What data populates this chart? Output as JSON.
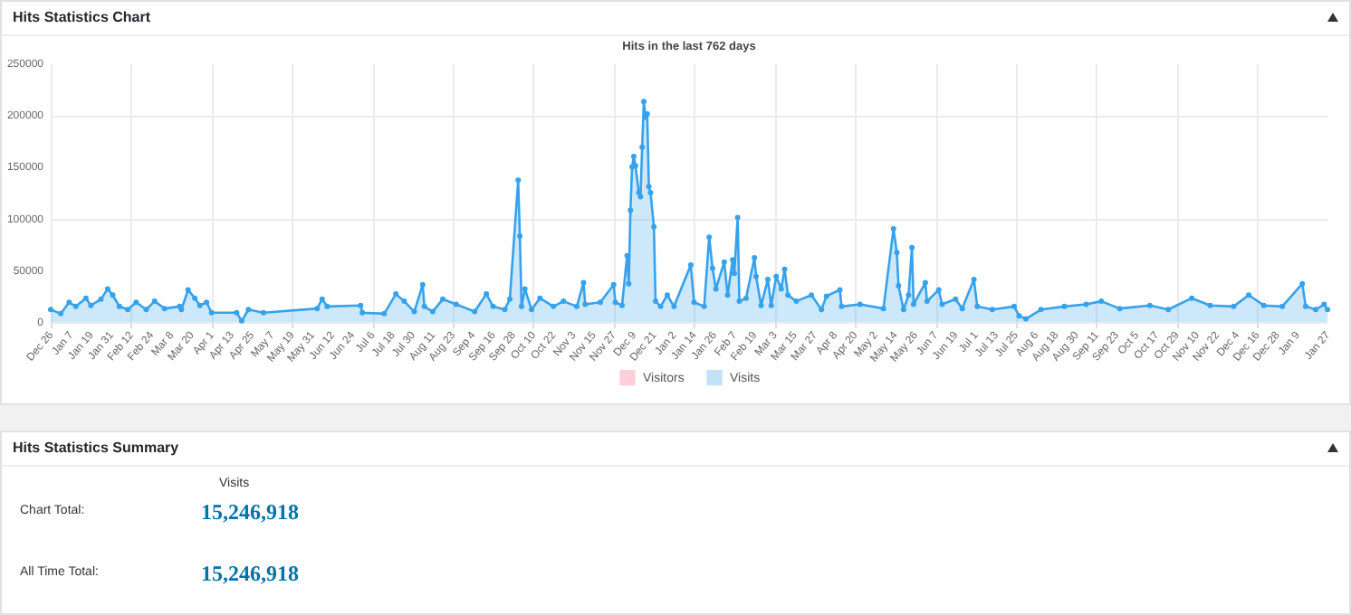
{
  "chart_data": [
    {
      "type": "area",
      "title": "Hits Statistics Chart",
      "subtitle": "Hits in the last 762 days",
      "marker": "circle",
      "grid": true,
      "legend": "bottom",
      "categories": [
        "Dec 26",
        null,
        null,
        null,
        null,
        null,
        null,
        null,
        null,
        null,
        null,
        null,
        "Jan 7",
        null,
        null,
        null,
        null,
        null,
        null,
        null,
        null,
        null,
        null,
        null,
        "Jan 19",
        null,
        null,
        null,
        null,
        null,
        null,
        null,
        null,
        null,
        null,
        null,
        "Jan 31",
        null,
        null,
        null,
        null,
        null,
        null,
        null,
        null,
        null,
        null,
        null,
        "Feb 12",
        null,
        null,
        null,
        null,
        null,
        null,
        null,
        null,
        null,
        null,
        null,
        "Feb 24",
        null,
        null,
        null,
        null,
        null,
        null,
        null,
        null,
        null,
        null,
        null,
        "Mar 8",
        null,
        null,
        null,
        null,
        null,
        null,
        null,
        null,
        null,
        null,
        null,
        "Mar 20",
        null,
        null,
        null,
        null,
        null,
        null,
        null,
        null,
        null,
        null,
        null,
        "Apr 1",
        null,
        null,
        null,
        null,
        null,
        null,
        null,
        null,
        null,
        null,
        null,
        "Apr 13",
        null,
        null,
        null,
        null,
        null,
        null,
        null,
        null,
        null,
        null,
        null,
        "Apr 25",
        null,
        null,
        null,
        null,
        null,
        null,
        null,
        null,
        null,
        null,
        null,
        "May 7",
        null,
        null,
        null,
        null,
        null,
        null,
        null,
        null,
        null,
        null,
        null,
        "May 19",
        null,
        null,
        null,
        null,
        null,
        null,
        null,
        null,
        null,
        null,
        null,
        "May 31",
        null,
        null,
        null,
        null,
        null,
        null,
        null,
        null,
        null,
        null,
        null,
        "Jun 12",
        null,
        null,
        null,
        null,
        null,
        null,
        null,
        null,
        null,
        null,
        null,
        "Jun 24",
        null,
        null,
        null,
        null,
        null,
        null,
        null,
        null,
        null,
        null,
        null,
        "Jul 6",
        null,
        null,
        null,
        null,
        null,
        null,
        null,
        null,
        null,
        null,
        null,
        "Jul 18",
        null,
        null,
        null,
        null,
        null,
        null,
        null,
        null,
        null,
        null,
        null,
        "Jul 30",
        null,
        null,
        null,
        null,
        null,
        null,
        null,
        null,
        null,
        null,
        null,
        "Aug 11",
        null,
        null,
        null,
        null,
        null,
        null,
        null,
        null,
        null,
        null,
        null,
        "Aug 23",
        null,
        null,
        null,
        null,
        null,
        null,
        null,
        null,
        null,
        null,
        null,
        "Sep 4",
        null,
        null,
        null,
        null,
        null,
        null,
        null,
        null,
        null,
        null,
        null,
        "Sep 16",
        null,
        null,
        null,
        null,
        null,
        null,
        null,
        null,
        null,
        null,
        null,
        "Sep 28",
        null,
        null,
        null,
        null,
        null,
        null,
        null,
        null,
        null,
        null,
        null,
        "Oct 10",
        null,
        null,
        null,
        null,
        null,
        null,
        null,
        null,
        null,
        null,
        null,
        "Oct 22",
        null,
        null,
        null,
        null,
        null,
        null,
        null,
        null,
        null,
        null,
        null,
        "Nov 3",
        null,
        null,
        null,
        null,
        null,
        null,
        null,
        null,
        null,
        null,
        null,
        "Nov 15",
        null,
        null,
        null,
        null,
        null,
        null,
        null,
        null,
        null,
        null,
        null,
        "Nov 27",
        null,
        null,
        null,
        null,
        null,
        null,
        null,
        null,
        null,
        null,
        null,
        "Dec 9",
        null,
        null,
        null,
        null,
        null,
        null,
        null,
        null,
        null,
        null,
        null,
        "Dec 21",
        null,
        null,
        null,
        null,
        null,
        null,
        null,
        null,
        null,
        null,
        null,
        "Jan 2",
        null,
        null,
        null,
        null,
        null,
        null,
        null,
        null,
        null,
        null,
        null,
        "Jan 14",
        null,
        null,
        null,
        null,
        null,
        null,
        null,
        null,
        null,
        null,
        null,
        "Jan 26",
        null,
        null,
        null,
        null,
        null,
        null,
        null,
        null,
        null,
        null,
        null,
        "Feb 7",
        null,
        null,
        null,
        null,
        null,
        null,
        null,
        null,
        null,
        null,
        null,
        "Feb 19",
        null,
        null,
        null,
        null,
        null,
        null,
        null,
        null,
        null,
        null,
        null,
        "Mar 3",
        null,
        null,
        null,
        null,
        null,
        null,
        null,
        null,
        null,
        null,
        null,
        "Mar 15",
        null,
        null,
        null,
        null,
        null,
        null,
        null,
        null,
        null,
        null,
        null,
        "Mar 27",
        null,
        null,
        null,
        null,
        null,
        null,
        null,
        null,
        null,
        null,
        null,
        "Apr 8",
        null,
        null,
        null,
        null,
        null,
        null,
        null,
        null,
        null,
        null,
        null,
        "Apr 20",
        null,
        null,
        null,
        null,
        null,
        null,
        null,
        null,
        null,
        null,
        null,
        "May 2",
        null,
        null,
        null,
        null,
        null,
        null,
        null,
        null,
        null,
        null,
        null,
        "May 14",
        null,
        null,
        null,
        null,
        null,
        null,
        null,
        null,
        null,
        null,
        null,
        "May 26",
        null,
        null,
        null,
        null,
        null,
        null,
        null,
        null,
        null,
        null,
        null,
        "Jun 7",
        null,
        null,
        null,
        null,
        null,
        null,
        null,
        null,
        null,
        null,
        null,
        "Jun 19",
        null,
        null,
        null,
        null,
        null,
        null,
        null,
        null,
        null,
        null,
        null,
        "Jul 1",
        null,
        null,
        null,
        null,
        null,
        null,
        null,
        null,
        null,
        null,
        null,
        "Jul 13",
        null,
        null,
        null,
        null,
        null,
        null,
        null,
        null,
        null,
        null,
        null,
        "Jul 25",
        null,
        null,
        null,
        null,
        null,
        null,
        null,
        null,
        null,
        null,
        null,
        "Aug 6",
        null,
        null,
        null,
        null,
        null,
        null,
        null,
        null,
        null,
        null,
        null,
        "Aug 18",
        null,
        null,
        null,
        null,
        null,
        null,
        null,
        null,
        null,
        null,
        null,
        "Aug 30",
        null,
        null,
        null,
        null,
        null,
        null,
        null,
        null,
        null,
        null,
        null,
        "Sep 11",
        null,
        null,
        null,
        null,
        null,
        null,
        null,
        null,
        null,
        null,
        null,
        "Sep 23",
        null,
        null,
        null,
        null,
        null,
        null,
        null,
        null,
        null,
        null,
        null,
        "Oct 5",
        null,
        null,
        null,
        null,
        null,
        null,
        null,
        null,
        null,
        null,
        null,
        "Oct 17",
        null,
        null,
        null,
        null,
        null,
        null,
        null,
        null,
        null,
        null,
        null,
        "Oct 29",
        null,
        null,
        null,
        null,
        null,
        null,
        null,
        null,
        null,
        null,
        null,
        "Nov 10",
        null,
        null,
        null,
        null,
        null,
        null,
        null,
        null,
        null,
        null,
        null,
        "Nov 22",
        null,
        null,
        null,
        null,
        null,
        null,
        null,
        null,
        null,
        null,
        null,
        "Dec 4",
        null,
        null,
        null,
        null,
        null,
        null,
        null,
        null,
        null,
        null,
        null,
        "Dec 16",
        null,
        null,
        null,
        null,
        null,
        null,
        null,
        null,
        null,
        null,
        null,
        "Dec 28",
        null,
        null,
        null,
        null,
        null,
        null,
        null,
        null,
        null,
        null,
        null,
        "Jan 9",
        null,
        null,
        null,
        null,
        null,
        null,
        null,
        null,
        null,
        null,
        null,
        null,
        null,
        null,
        null,
        null,
        null,
        "Jan 27"
      ],
      "ylim": [
        0,
        250000
      ],
      "yticks": [
        0,
        50000,
        100000,
        150000,
        200000,
        250000
      ],
      "series": [
        {
          "name": "Visitors",
          "color": "#ff6384",
          "values": [
            null,
            null,
            null,
            null,
            null,
            null,
            null,
            null,
            null,
            null,
            null,
            null,
            null,
            null,
            null,
            null,
            null,
            null,
            null,
            null,
            null,
            null,
            null,
            null,
            null,
            null,
            null,
            null,
            null,
            null,
            null,
            null,
            null,
            null,
            null,
            null,
            null,
            null,
            null,
            null,
            null,
            null,
            null,
            null,
            null,
            null,
            null,
            null,
            null,
            null,
            null,
            null,
            null,
            null,
            null,
            null,
            null,
            null,
            null,
            null,
            null,
            null,
            null,
            null,
            null,
            null,
            null,
            null,
            null,
            null,
            null,
            null,
            null,
            null,
            null,
            null,
            null,
            null,
            null,
            null,
            null,
            null,
            null,
            null,
            null,
            null,
            null,
            null,
            null,
            null,
            null,
            null,
            null,
            null,
            null,
            null,
            null,
            null,
            null,
            null,
            null,
            null,
            null,
            null,
            null,
            null,
            null,
            null,
            null,
            null,
            null,
            null,
            null,
            null,
            null,
            null,
            null,
            null,
            null,
            null,
            null,
            null,
            null,
            null,
            null,
            null,
            null,
            null,
            null,
            null,
            null,
            null,
            null,
            null,
            null,
            null,
            null,
            null,
            null,
            null,
            null,
            null,
            null,
            null,
            null,
            null,
            null,
            null,
            null,
            null,
            null,
            null,
            null,
            null,
            null,
            null,
            null,
            null,
            null,
            null,
            null,
            null,
            null,
            null,
            null,
            null,
            null,
            null,
            null,
            null,
            null,
            null,
            null,
            null,
            null,
            null,
            null,
            null,
            null,
            null,
            null,
            null,
            null,
            null,
            null,
            null,
            null,
            null,
            null,
            null,
            null,
            null,
            null,
            null,
            null,
            null,
            null,
            null,
            null,
            null,
            null,
            null,
            null,
            null,
            null,
            null,
            null,
            null,
            null,
            null,
            null,
            null,
            null,
            null,
            null,
            null,
            null,
            null,
            null,
            null,
            null,
            null,
            null,
            null,
            null,
            null,
            null,
            null,
            null,
            null,
            null,
            null,
            null,
            null,
            null,
            null,
            null,
            null,
            null,
            null,
            null,
            null,
            null,
            null,
            null,
            null,
            null,
            null,
            null,
            null,
            null,
            null,
            null,
            null,
            null,
            null,
            null,
            null,
            null,
            null,
            null,
            null,
            null,
            null,
            null,
            null,
            null,
            null,
            null,
            null,
            null,
            null,
            null,
            null,
            null,
            null,
            null,
            null,
            null,
            null,
            null,
            null,
            null,
            null,
            null,
            null,
            null,
            null,
            null,
            null,
            null,
            null,
            null,
            null,
            null,
            null,
            null,
            null,
            null,
            null,
            null,
            null,
            null,
            null,
            null,
            null,
            null,
            null,
            null,
            null,
            null,
            null,
            null,
            null,
            null,
            null,
            null,
            null,
            null,
            null,
            null,
            null,
            null,
            null,
            null,
            null,
            null,
            null,
            null,
            null,
            null,
            null,
            null,
            null,
            null,
            null,
            null,
            null,
            null,
            null,
            null,
            null,
            null,
            null,
            null,
            null,
            null,
            null,
            null,
            null,
            null,
            null,
            null,
            null,
            null,
            null,
            null,
            null,
            null,
            null,
            null,
            null,
            null,
            null,
            null,
            null,
            null,
            null,
            null,
            null,
            null,
            null,
            null,
            null,
            null,
            null,
            null,
            null,
            null,
            null,
            null,
            null,
            null,
            null,
            null,
            null,
            null,
            null,
            null,
            null,
            null,
            null,
            null,
            null,
            null,
            null,
            null,
            null,
            null,
            null,
            null,
            null,
            null,
            null,
            null,
            null,
            null,
            null,
            null,
            null,
            null,
            null,
            null,
            null,
            null,
            null,
            null,
            null,
            null,
            null,
            null,
            null,
            null,
            null,
            null,
            null,
            null,
            null,
            null,
            null,
            null,
            null,
            null,
            null,
            null,
            null,
            null,
            null,
            null,
            null,
            null,
            null,
            null,
            null,
            null,
            null,
            null,
            null,
            null,
            null,
            null,
            null,
            null,
            null,
            null,
            null,
            null,
            null,
            null,
            null,
            null,
            null,
            null,
            null,
            null,
            null,
            null,
            null,
            null,
            null,
            null,
            null,
            null,
            null,
            null,
            null,
            null,
            null,
            null,
            null,
            null,
            null,
            null,
            null,
            null,
            null,
            null,
            null,
            null,
            null,
            null,
            null,
            null,
            null,
            null,
            null,
            null,
            null,
            null,
            null,
            null,
            null,
            null,
            null,
            null,
            null,
            null,
            null,
            null,
            null,
            null,
            null,
            null,
            null,
            null,
            null,
            null,
            null,
            null,
            null,
            null,
            null,
            null,
            null,
            null,
            null,
            null,
            null,
            null,
            null,
            null,
            null,
            null,
            null,
            null,
            null,
            null,
            null,
            null,
            null,
            null,
            null,
            null,
            null,
            null,
            null,
            null,
            null,
            null,
            null,
            null,
            null,
            null,
            null,
            null,
            null,
            null,
            null,
            null,
            null,
            null,
            null,
            null,
            null,
            null,
            null,
            null,
            null,
            null,
            null,
            null,
            null,
            null,
            null,
            null,
            null,
            null,
            null,
            null,
            null,
            null,
            null,
            null,
            null,
            null,
            null,
            null,
            null,
            null,
            null,
            null,
            null,
            null,
            null,
            null,
            null,
            null,
            null,
            null,
            null,
            null,
            null,
            null,
            null,
            null,
            null,
            null,
            null,
            null,
            null,
            null,
            null,
            null,
            null,
            null,
            null,
            null,
            null,
            null,
            null,
            null,
            null,
            null,
            null,
            null,
            null,
            null,
            null,
            null,
            null,
            null,
            null,
            null,
            null,
            null,
            null,
            null,
            null,
            null,
            null,
            null,
            null,
            null,
            null,
            null,
            null,
            null,
            null,
            null,
            null,
            null,
            null,
            null,
            null,
            null,
            null,
            null,
            null,
            null,
            null,
            null,
            null,
            null,
            null,
            null,
            null,
            null,
            null,
            null,
            null,
            null,
            null,
            null,
            null,
            null,
            null,
            null,
            null,
            null,
            null,
            null,
            null,
            null,
            null,
            null,
            null,
            null,
            null,
            null,
            null,
            null,
            null,
            null,
            null,
            null,
            null,
            null,
            null,
            null,
            null,
            null,
            null,
            null,
            null,
            null,
            null,
            null,
            null,
            null,
            null,
            null,
            null,
            null,
            null,
            null,
            null,
            null,
            null,
            null,
            null,
            null,
            null,
            null,
            null,
            null,
            null,
            null,
            null,
            null,
            null,
            null,
            null,
            null,
            null,
            null,
            null,
            null,
            null,
            null,
            null,
            null,
            null,
            null,
            null,
            null,
            null,
            null,
            null,
            null,
            null,
            null,
            null,
            null,
            null,
            null,
            null,
            null,
            null,
            null,
            null,
            null,
            null,
            null
          ]
        },
        {
          "name": "Visits",
          "color": "#36a2eb",
          "values": [
            12000,
            null,
            null,
            null,
            null,
            null,
            8000,
            null,
            null,
            null,
            null,
            19000,
            null,
            null,
            null,
            15000,
            null,
            null,
            null,
            null,
            null,
            23000,
            null,
            null,
            16000,
            null,
            null,
            null,
            null,
            null,
            22000,
            null,
            null,
            null,
            32000,
            null,
            null,
            26000,
            null,
            null,
            null,
            15000,
            null,
            null,
            null,
            null,
            12000,
            null,
            null,
            null,
            null,
            19000,
            null,
            null,
            null,
            null,
            null,
            12000,
            null,
            null,
            null,
            null,
            20000,
            null,
            null,
            null,
            null,
            null,
            13000,
            null,
            null,
            null,
            null,
            null,
            null,
            null,
            null,
            15000,
            12000,
            null,
            null,
            null,
            31000,
            null,
            null,
            null,
            23000,
            null,
            null,
            16000,
            null,
            null,
            null,
            19000,
            null,
            null,
            9000,
            null,
            null,
            null,
            null,
            null,
            null,
            null,
            null,
            null,
            null,
            null,
            null,
            null,
            null,
            9000,
            null,
            null,
            1000,
            null,
            null,
            null,
            12000,
            null,
            null,
            null,
            null,
            null,
            null,
            null,
            null,
            9000,
            null,
            null,
            null,
            null,
            null,
            null,
            null,
            null,
            null,
            null,
            null,
            null,
            null,
            null,
            null,
            null,
            null,
            null,
            null,
            null,
            null,
            null,
            null,
            null,
            null,
            null,
            null,
            null,
            null,
            null,
            null,
            13000,
            null,
            null,
            22000,
            null,
            null,
            15000,
            null,
            null,
            null,
            null,
            null,
            null,
            null,
            null,
            null,
            null,
            null,
            null,
            null,
            null,
            null,
            null,
            null,
            null,
            null,
            16000,
            9000,
            null,
            null,
            null,
            null,
            null,
            null,
            null,
            null,
            null,
            null,
            null,
            null,
            8000,
            null,
            null,
            null,
            null,
            null,
            null,
            27000,
            null,
            null,
            null,
            null,
            20000,
            null,
            null,
            null,
            null,
            null,
            10000,
            null,
            null,
            null,
            null,
            36000,
            15000,
            null,
            null,
            null,
            null,
            10000,
            null,
            null,
            null,
            null,
            null,
            22000,
            null,
            null,
            null,
            null,
            null,
            null,
            null,
            17000,
            null,
            null,
            null,
            null,
            null,
            null,
            null,
            null,
            null,
            null,
            10000,
            null,
            null,
            null,
            null,
            null,
            null,
            27000,
            null,
            null,
            null,
            15000,
            null,
            null,
            null,
            null,
            null,
            null,
            12000,
            null,
            null,
            22000,
            null,
            null,
            null,
            null,
            137000,
            83000,
            15000,
            null,
            32000,
            null,
            null,
            null,
            12000,
            null,
            null,
            null,
            null,
            23000,
            null,
            null,
            null,
            null,
            null,
            null,
            null,
            15000,
            null,
            null,
            null,
            null,
            null,
            20000,
            null,
            null,
            null,
            null,
            null,
            null,
            null,
            15000,
            null,
            null,
            null,
            38000,
            17000,
            null,
            null,
            null,
            null,
            null,
            null,
            null,
            null,
            19000,
            null,
            null,
            null,
            null,
            null,
            null,
            null,
            36000,
            19000,
            null,
            null,
            null,
            16000,
            null,
            null,
            64000,
            37000,
            108000,
            150000,
            160000,
            151000,
            null,
            125000,
            121000,
            169000,
            213000,
            198000,
            201000,
            131000,
            125000,
            null,
            92000,
            20000,
            null,
            null,
            15000,
            null,
            null,
            null,
            26000,
            null,
            null,
            null,
            15000,
            null,
            null,
            null,
            null,
            null,
            null,
            null,
            null,
            null,
            55000,
            null,
            19000,
            null,
            null,
            null,
            null,
            null,
            15000,
            null,
            null,
            82000,
            null,
            52000,
            null,
            32000,
            null,
            null,
            null,
            null,
            58000,
            null,
            26000,
            null,
            null,
            60000,
            47000,
            null,
            101000,
            20000,
            null,
            null,
            null,
            23000,
            null,
            null,
            null,
            null,
            62000,
            44000,
            null,
            null,
            16000,
            null,
            null,
            null,
            41000,
            null,
            16000,
            null,
            null,
            44000,
            null,
            null,
            32000,
            null,
            51000,
            null,
            26000,
            null,
            null,
            null,
            null,
            20000,
            null,
            null,
            null,
            null,
            null,
            null,
            null,
            null,
            26000,
            null,
            null,
            null,
            null,
            null,
            12000,
            null,
            null,
            25000,
            null,
            null,
            null,
            null,
            null,
            null,
            null,
            31000,
            15000,
            null,
            null,
            null,
            null,
            null,
            null,
            null,
            null,
            null,
            null,
            17000,
            null,
            null,
            null,
            null,
            null,
            null,
            null,
            null,
            null,
            null,
            null,
            null,
            null,
            13000,
            null,
            null,
            null,
            null,
            null,
            90000,
            null,
            67000,
            35000,
            null,
            null,
            12000,
            null,
            null,
            26000,
            null,
            72000,
            17000,
            null,
            null,
            null,
            null,
            null,
            null,
            38000,
            20000,
            null,
            null,
            null,
            null,
            null,
            null,
            31000,
            null,
            17000,
            null,
            null,
            null,
            null,
            null,
            null,
            null,
            22000,
            null,
            null,
            null,
            13000,
            null,
            null,
            null,
            null,
            null,
            null,
            41000,
            null,
            15000,
            null,
            null,
            null,
            null,
            null,
            null,
            null,
            null,
            12000,
            null,
            null,
            null,
            null,
            null,
            null,
            null,
            null,
            null,
            null,
            null,
            null,
            15000,
            null,
            null,
            6000,
            null,
            null,
            null,
            3000,
            null,
            null,
            null,
            null,
            null,
            null,
            null,
            null,
            12000,
            null,
            null,
            null,
            null,
            null,
            null,
            null,
            null,
            null,
            null,
            null,
            null,
            null,
            15000,
            null,
            null,
            null,
            null,
            null,
            null,
            null,
            null,
            null,
            null,
            null,
            null,
            17000,
            null,
            null,
            null,
            null,
            null,
            null,
            null,
            null,
            20000,
            null,
            null,
            null,
            null,
            null,
            null,
            null,
            null,
            null,
            null,
            13000,
            null,
            null,
            null,
            null,
            null,
            null,
            null,
            null,
            null,
            null,
            null,
            null,
            null,
            null,
            null,
            null,
            null,
            16000,
            null,
            null,
            null,
            null,
            null,
            null,
            null,
            null,
            null,
            null,
            12000,
            null,
            null,
            null,
            null,
            null,
            null,
            null,
            null,
            null,
            null,
            null,
            null,
            null,
            23000,
            null,
            null,
            null,
            null,
            null,
            null,
            null,
            null,
            null,
            null,
            16000,
            null,
            null,
            null,
            null,
            null,
            null,
            null,
            null,
            null,
            null,
            null,
            null,
            null,
            15000,
            null,
            null,
            null,
            null,
            null,
            null,
            null,
            null,
            26000,
            null,
            null,
            null,
            null,
            null,
            null,
            null,
            null,
            16000,
            null,
            null,
            null,
            null,
            null,
            null,
            null,
            null,
            null,
            null,
            15000,
            null,
            null,
            null,
            null,
            null,
            null,
            null,
            null,
            null,
            null,
            null,
            37000,
            null,
            15000,
            null,
            null,
            null,
            null,
            null,
            12000,
            null,
            null,
            null,
            null,
            17000,
            null,
            12000
          ]
        }
      ]
    },
    {
      "type": "other",
      "title": "Hits Statistics Summary",
      "annotations": [
        "Visits",
        "Chart Total:",
        "15,246,918",
        "All Time Total:",
        "15,246,918"
      ]
    }
  ]
}
